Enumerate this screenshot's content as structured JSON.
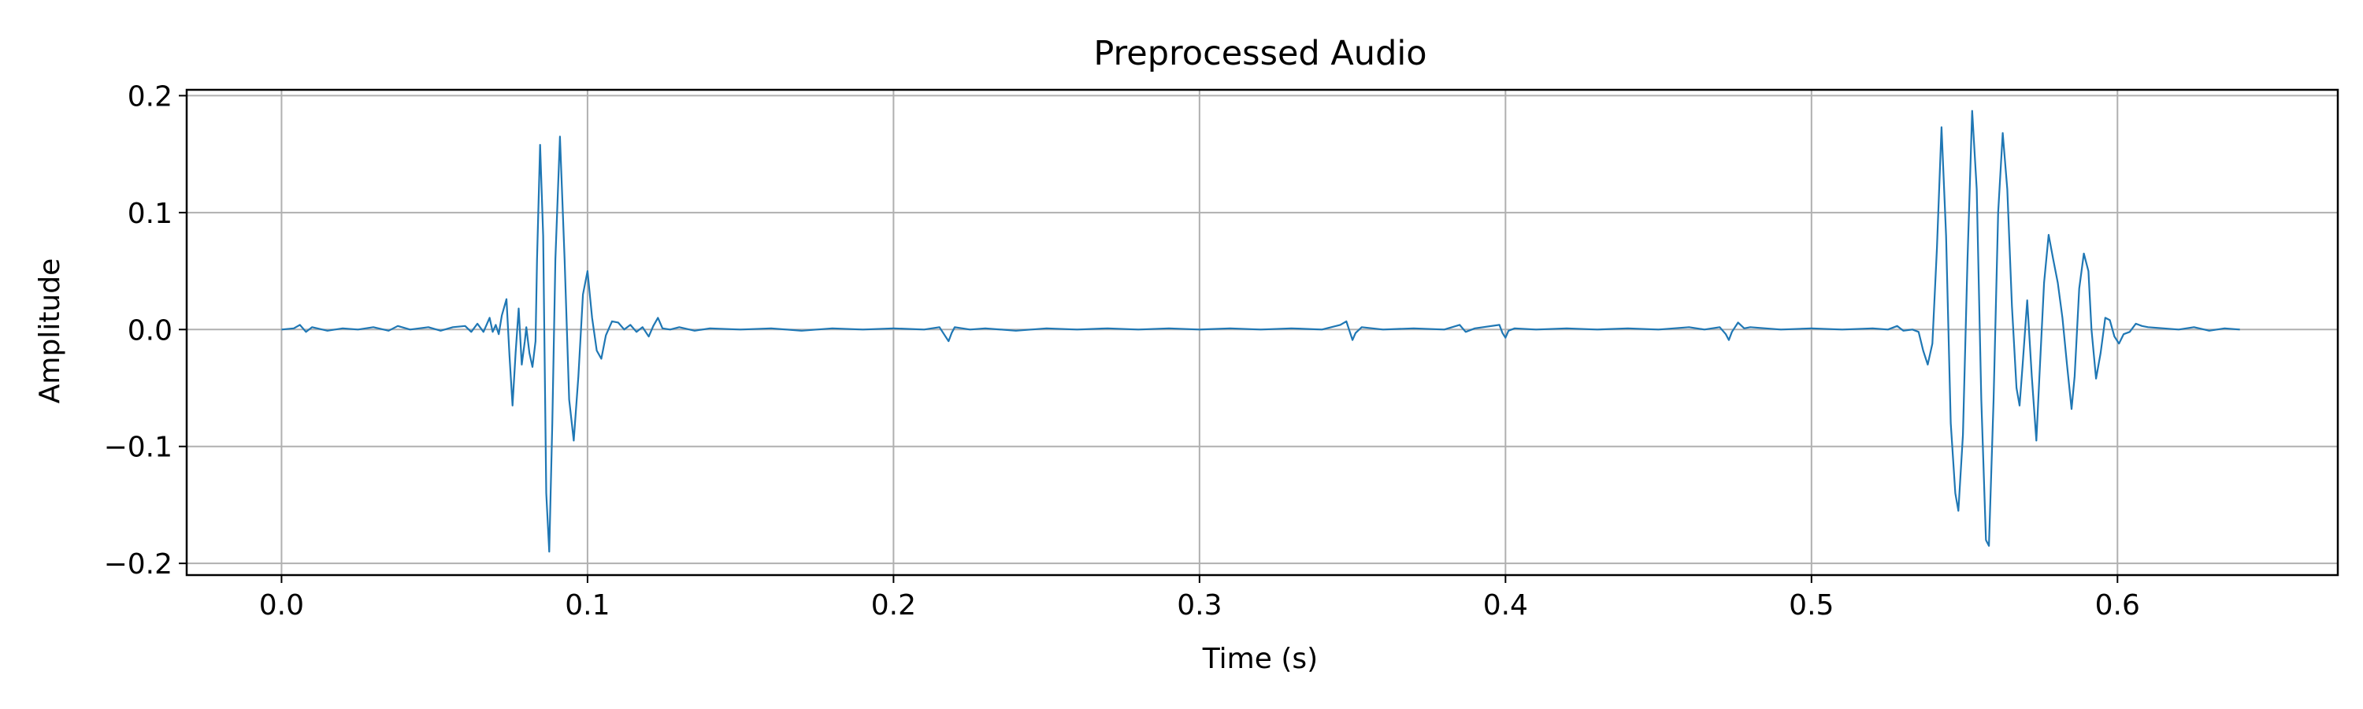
{
  "chart_data": {
    "type": "line",
    "title": "Preprocessed Audio",
    "xlabel": "Time (s)",
    "ylabel": "Amplitude",
    "xlim": [
      -0.031,
      0.672
    ],
    "ylim": [
      -0.21,
      0.205
    ],
    "grid": true,
    "x_ticks": [
      0.0,
      0.1,
      0.2,
      0.3,
      0.4,
      0.5,
      0.6
    ],
    "x_tick_labels": [
      "0.0",
      "0.1",
      "0.2",
      "0.3",
      "0.4",
      "0.5",
      "0.6"
    ],
    "y_ticks": [
      0.2,
      0.1,
      0.0,
      -0.1,
      -0.2
    ],
    "y_tick_labels": [
      "0.2",
      "0.1",
      "0.0",
      "−0.1",
      "−0.2"
    ],
    "series": [
      {
        "color": "#1f77b4",
        "points": [
          [
            0.0,
            0.0
          ],
          [
            0.004,
            0.001
          ],
          [
            0.006,
            0.004
          ],
          [
            0.008,
            -0.002
          ],
          [
            0.01,
            0.002
          ],
          [
            0.015,
            -0.001
          ],
          [
            0.02,
            0.001
          ],
          [
            0.025,
            0.0
          ],
          [
            0.03,
            0.002
          ],
          [
            0.035,
            -0.001
          ],
          [
            0.038,
            0.003
          ],
          [
            0.042,
            0.0
          ],
          [
            0.048,
            0.002
          ],
          [
            0.052,
            -0.001
          ],
          [
            0.056,
            0.002
          ],
          [
            0.06,
            0.003
          ],
          [
            0.062,
            -0.002
          ],
          [
            0.064,
            0.005
          ],
          [
            0.066,
            -0.002
          ],
          [
            0.068,
            0.01
          ],
          [
            0.069,
            -0.002
          ],
          [
            0.07,
            0.004
          ],
          [
            0.071,
            -0.004
          ],
          [
            0.072,
            0.012
          ],
          [
            0.0735,
            0.026
          ],
          [
            0.0745,
            -0.022
          ],
          [
            0.0755,
            -0.065
          ],
          [
            0.0765,
            -0.02
          ],
          [
            0.0775,
            0.018
          ],
          [
            0.0785,
            -0.03
          ],
          [
            0.0795,
            -0.01
          ],
          [
            0.08,
            0.002
          ],
          [
            0.081,
            -0.02
          ],
          [
            0.082,
            -0.032
          ],
          [
            0.083,
            -0.01
          ],
          [
            0.0835,
            0.06
          ],
          [
            0.0845,
            0.158
          ],
          [
            0.0855,
            0.08
          ],
          [
            0.0865,
            -0.14
          ],
          [
            0.0875,
            -0.19
          ],
          [
            0.0885,
            -0.08
          ],
          [
            0.0895,
            0.06
          ],
          [
            0.091,
            0.165
          ],
          [
            0.0925,
            0.06
          ],
          [
            0.094,
            -0.06
          ],
          [
            0.0955,
            -0.095
          ],
          [
            0.097,
            -0.04
          ],
          [
            0.0985,
            0.03
          ],
          [
            0.1,
            0.05
          ],
          [
            0.1015,
            0.01
          ],
          [
            0.103,
            -0.018
          ],
          [
            0.1045,
            -0.025
          ],
          [
            0.106,
            -0.005
          ],
          [
            0.108,
            0.007
          ],
          [
            0.11,
            0.006
          ],
          [
            0.112,
            0.0
          ],
          [
            0.114,
            0.004
          ],
          [
            0.116,
            -0.002
          ],
          [
            0.118,
            0.002
          ],
          [
            0.12,
            -0.006
          ],
          [
            0.1215,
            0.003
          ],
          [
            0.123,
            0.01
          ],
          [
            0.1245,
            0.001
          ],
          [
            0.127,
            0.0
          ],
          [
            0.13,
            0.002
          ],
          [
            0.135,
            -0.001
          ],
          [
            0.14,
            0.001
          ],
          [
            0.15,
            0.0
          ],
          [
            0.16,
            0.001
          ],
          [
            0.17,
            -0.001
          ],
          [
            0.18,
            0.001
          ],
          [
            0.19,
            0.0
          ],
          [
            0.2,
            0.001
          ],
          [
            0.21,
            0.0
          ],
          [
            0.215,
            0.002
          ],
          [
            0.217,
            -0.006
          ],
          [
            0.218,
            -0.01
          ],
          [
            0.219,
            -0.003
          ],
          [
            0.22,
            0.002
          ],
          [
            0.225,
            0.0
          ],
          [
            0.23,
            0.001
          ],
          [
            0.24,
            -0.001
          ],
          [
            0.25,
            0.001
          ],
          [
            0.26,
            0.0
          ],
          [
            0.27,
            0.001
          ],
          [
            0.28,
            0.0
          ],
          [
            0.29,
            0.001
          ],
          [
            0.3,
            0.0
          ],
          [
            0.31,
            0.001
          ],
          [
            0.32,
            0.0
          ],
          [
            0.33,
            0.001
          ],
          [
            0.34,
            0.0
          ],
          [
            0.346,
            0.004
          ],
          [
            0.348,
            0.007
          ],
          [
            0.349,
            -0.001
          ],
          [
            0.35,
            -0.009
          ],
          [
            0.351,
            -0.003
          ],
          [
            0.353,
            0.002
          ],
          [
            0.36,
            0.0
          ],
          [
            0.37,
            0.001
          ],
          [
            0.38,
            0.0
          ],
          [
            0.385,
            0.004
          ],
          [
            0.387,
            -0.002
          ],
          [
            0.39,
            0.001
          ],
          [
            0.398,
            0.004
          ],
          [
            0.399,
            -0.003
          ],
          [
            0.4,
            -0.007
          ],
          [
            0.401,
            -0.001
          ],
          [
            0.403,
            0.001
          ],
          [
            0.41,
            0.0
          ],
          [
            0.42,
            0.001
          ],
          [
            0.43,
            0.0
          ],
          [
            0.44,
            0.001
          ],
          [
            0.45,
            0.0
          ],
          [
            0.46,
            0.002
          ],
          [
            0.465,
            0.0
          ],
          [
            0.47,
            0.002
          ],
          [
            0.472,
            -0.004
          ],
          [
            0.473,
            -0.009
          ],
          [
            0.474,
            -0.002
          ],
          [
            0.476,
            0.006
          ],
          [
            0.478,
            0.001
          ],
          [
            0.48,
            0.002
          ],
          [
            0.49,
            0.0
          ],
          [
            0.5,
            0.001
          ],
          [
            0.51,
            0.0
          ],
          [
            0.52,
            0.001
          ],
          [
            0.525,
            0.0
          ],
          [
            0.528,
            0.003
          ],
          [
            0.53,
            -0.001
          ],
          [
            0.533,
            0.0
          ],
          [
            0.535,
            -0.002
          ],
          [
            0.5365,
            -0.018
          ],
          [
            0.538,
            -0.03
          ],
          [
            0.5395,
            -0.012
          ],
          [
            0.541,
            0.07
          ],
          [
            0.5425,
            0.173
          ],
          [
            0.544,
            0.08
          ],
          [
            0.5455,
            -0.08
          ],
          [
            0.547,
            -0.14
          ],
          [
            0.548,
            -0.155
          ],
          [
            0.5495,
            -0.09
          ],
          [
            0.551,
            0.06
          ],
          [
            0.5525,
            0.187
          ],
          [
            0.554,
            0.12
          ],
          [
            0.5555,
            -0.06
          ],
          [
            0.557,
            -0.18
          ],
          [
            0.558,
            -0.185
          ],
          [
            0.5595,
            -0.06
          ],
          [
            0.561,
            0.1
          ],
          [
            0.5625,
            0.168
          ],
          [
            0.564,
            0.12
          ],
          [
            0.5655,
            0.02
          ],
          [
            0.567,
            -0.05
          ],
          [
            0.568,
            -0.065
          ],
          [
            0.569,
            -0.03
          ],
          [
            0.5705,
            0.025
          ],
          [
            0.572,
            -0.04
          ],
          [
            0.5735,
            -0.095
          ],
          [
            0.5745,
            -0.04
          ],
          [
            0.576,
            0.04
          ],
          [
            0.5775,
            0.081
          ],
          [
            0.579,
            0.06
          ],
          [
            0.5805,
            0.04
          ],
          [
            0.582,
            0.01
          ],
          [
            0.5835,
            -0.03
          ],
          [
            0.585,
            -0.068
          ],
          [
            0.586,
            -0.04
          ],
          [
            0.5875,
            0.035
          ],
          [
            0.589,
            0.065
          ],
          [
            0.5905,
            0.05
          ],
          [
            0.5915,
            0.0
          ],
          [
            0.593,
            -0.042
          ],
          [
            0.5945,
            -0.02
          ],
          [
            0.596,
            0.01
          ],
          [
            0.5975,
            0.008
          ],
          [
            0.599,
            -0.006
          ],
          [
            0.6005,
            -0.012
          ],
          [
            0.602,
            -0.004
          ],
          [
            0.604,
            -0.002
          ],
          [
            0.606,
            0.005
          ],
          [
            0.608,
            0.003
          ],
          [
            0.61,
            0.002
          ],
          [
            0.615,
            0.001
          ],
          [
            0.62,
            0.0
          ],
          [
            0.625,
            0.002
          ],
          [
            0.63,
            -0.001
          ],
          [
            0.635,
            0.001
          ],
          [
            0.64,
            0.0
          ]
        ]
      }
    ]
  }
}
